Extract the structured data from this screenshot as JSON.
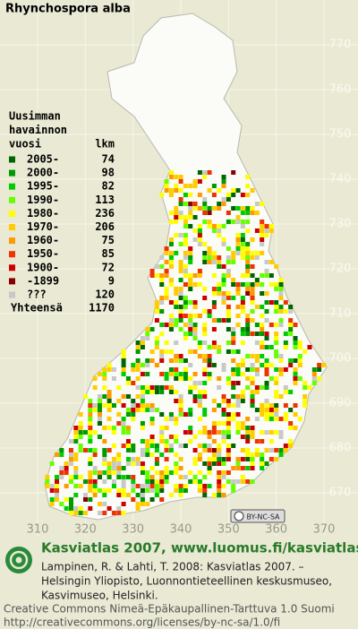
{
  "title": "Rhynchospora alba",
  "legend": {
    "heading": [
      "Uusimman",
      "havainnon",
      "vuosi"
    ],
    "count_header": "lkm",
    "rows": [
      {
        "label": "2005-",
        "count": 74,
        "color": "#006600"
      },
      {
        "label": "2000-",
        "count": 98,
        "color": "#009900"
      },
      {
        "label": "1995-",
        "count": 82,
        "color": "#00cc00"
      },
      {
        "label": "1990-",
        "count": 113,
        "color": "#66ff00"
      },
      {
        "label": "1980-",
        "count": 236,
        "color": "#ffff00"
      },
      {
        "label": "1970-",
        "count": 206,
        "color": "#ffcc00"
      },
      {
        "label": "1960-",
        "count": 75,
        "color": "#ff9900"
      },
      {
        "label": "1950-",
        "count": 85,
        "color": "#ee3300"
      },
      {
        "label": "1900-",
        "count": 72,
        "color": "#cc0000"
      },
      {
        "label": "-1899",
        "count": 9,
        "color": "#880000"
      },
      {
        "label": "???",
        "count": 120,
        "color": "#c8c8c8"
      }
    ],
    "total_label": "Yhteensä",
    "total": 1170
  },
  "axes": {
    "yticks": [
      770,
      760,
      750,
      740,
      730,
      720,
      710,
      700,
      690,
      680,
      670
    ],
    "xticks": [
      310,
      320,
      330,
      340,
      350,
      360,
      370
    ]
  },
  "license_badge": "BY-NC-SA",
  "footer": {
    "site": "Kasviatlas 2007, www.luomus.fi/kasviatlas",
    "citation": [
      "Lampinen, R. & Lahti, T. 2008: Kasviatlas 2007. –",
      "Helsingin Yliopisto, Luonnontieteellinen keskusmuseo,",
      "Kasvimuseo, Helsinki."
    ],
    "license": [
      "Creative Commons Nimeä-Epäkaupallinen-Tarttuva 1.0 Suomi",
      "http://creativecommons.org/licenses/by-nc-sa/1.0/fi"
    ]
  }
}
